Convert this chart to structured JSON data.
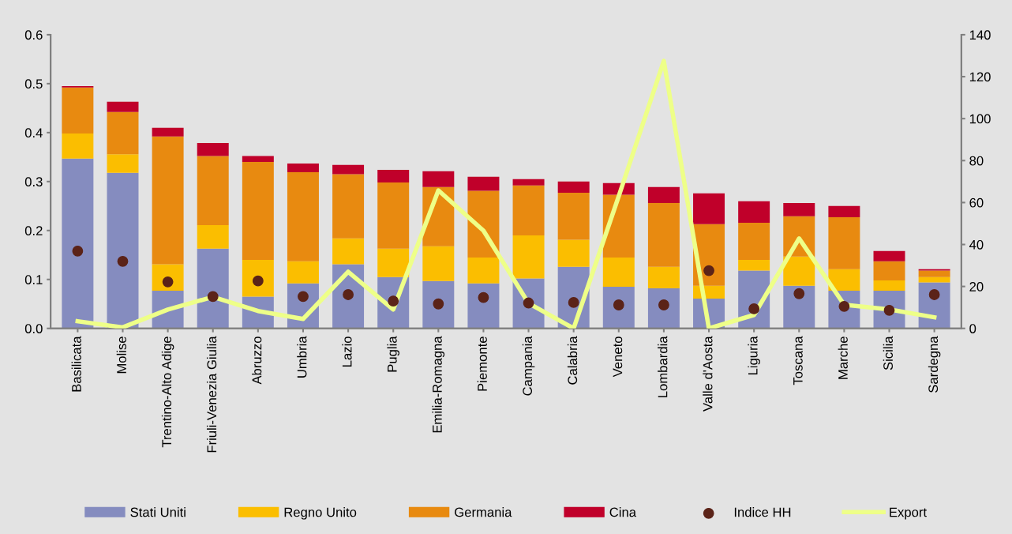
{
  "chart_data": {
    "type": "bar",
    "stacked": true,
    "categories": [
      "Basilicata",
      "Molise",
      "Trentino-Alto Adige",
      "Friuli-Venezia Giulia",
      "Abruzzo",
      "Umbria",
      "Lazio",
      "Puglia",
      "Emilia-Romagna",
      "Piemonte",
      "Campania",
      "Calabria",
      "Veneto",
      "Lombardia",
      "Valle d'Aosta",
      "Liguria",
      "Toscana",
      "Marche",
      "Sicilia",
      "Sardegna"
    ],
    "series": [
      {
        "name": "Stati Uniti",
        "color": "#858cbf",
        "values": [
          0.347,
          0.318,
          0.077,
          0.163,
          0.065,
          0.092,
          0.131,
          0.105,
          0.097,
          0.092,
          0.102,
          0.126,
          0.085,
          0.082,
          0.061,
          0.118,
          0.087,
          0.077,
          0.077,
          0.094
        ]
      },
      {
        "name": "Regno Unito",
        "color": "#fbbe00",
        "values": [
          0.051,
          0.038,
          0.054,
          0.048,
          0.075,
          0.045,
          0.053,
          0.058,
          0.071,
          0.053,
          0.088,
          0.055,
          0.06,
          0.044,
          0.026,
          0.022,
          0.06,
          0.044,
          0.021,
          0.011
        ]
      },
      {
        "name": "Germania",
        "color": "#e88a10",
        "values": [
          0.094,
          0.086,
          0.261,
          0.141,
          0.2,
          0.182,
          0.131,
          0.135,
          0.121,
          0.136,
          0.102,
          0.096,
          0.128,
          0.13,
          0.126,
          0.076,
          0.082,
          0.106,
          0.039,
          0.013
        ]
      },
      {
        "name": "Cina",
        "color": "#c0002a",
        "values": [
          0.003,
          0.021,
          0.018,
          0.027,
          0.012,
          0.018,
          0.019,
          0.026,
          0.032,
          0.029,
          0.013,
          0.023,
          0.024,
          0.033,
          0.063,
          0.044,
          0.027,
          0.023,
          0.021,
          0.003
        ]
      },
      {
        "name": "Indice HH",
        "type": "scatter",
        "marker": "circle",
        "color": "#5b2318",
        "values": [
          0.158,
          0.137,
          0.095,
          0.065,
          0.097,
          0.065,
          0.069,
          0.056,
          0.05,
          0.063,
          0.052,
          0.053,
          0.048,
          0.048,
          0.118,
          0.04,
          0.071,
          0.045,
          0.037,
          0.069
        ]
      },
      {
        "name": "Export",
        "type": "line",
        "axis": "y2",
        "color": "#eeff88",
        "values": [
          3.4,
          0.5,
          9.0,
          15.0,
          8.3,
          4.5,
          27,
          9.0,
          65.8,
          46.6,
          12.0,
          0,
          63,
          127.5,
          0,
          6.4,
          42.9,
          11.3,
          9.0,
          5.3
        ]
      }
    ],
    "ylim": [
      0,
      0.6
    ],
    "yticks": [
      {
        "value": 0,
        "label": "0.0"
      },
      0.1,
      0.2,
      0.3,
      0.4,
      0.5,
      0.6
    ],
    "y2lim": [
      0,
      140
    ],
    "y2ticks": [
      0,
      20,
      40,
      60,
      80,
      100,
      120,
      140
    ],
    "grid": false,
    "legend": "bottom"
  }
}
